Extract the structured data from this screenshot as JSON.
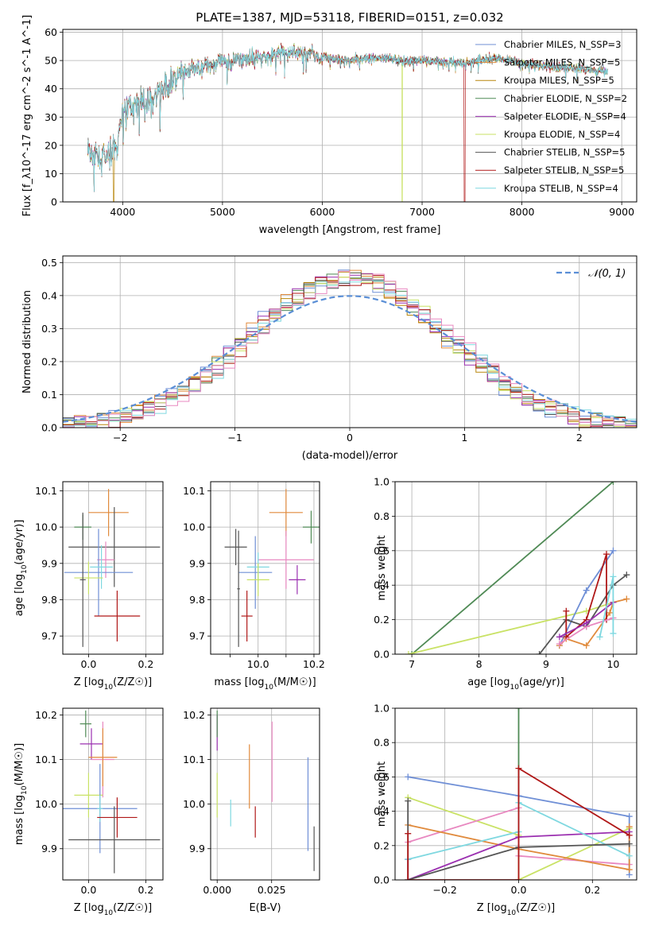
{
  "chart_data": [
    {
      "id": "spectrum",
      "type": "line",
      "title": "PLATE=1387, MJD=53118, FIBERID=0151, z=0.032",
      "xlabel": "wavelength [Angstrom, rest frame]",
      "ylabel": "Flux [f_λ10^-17 erg cm^-2 s^-1 A^-1]",
      "xlim": [
        3400,
        9150
      ],
      "ylim": [
        0,
        61
      ],
      "xticks": [
        4000,
        5000,
        6000,
        7000,
        8000,
        9000
      ],
      "yticks": [
        0,
        10,
        20,
        30,
        40,
        50,
        60
      ],
      "legend_position": "top-right",
      "series": [
        {
          "name": "Chabrier MILES, N_SSP=3",
          "color": "#6f8fd6"
        },
        {
          "name": "Salpeter MILES, N_SSP=5",
          "color": "#e08a3c"
        },
        {
          "name": "Kroupa MILES, N_SSP=5",
          "color": "#b8860b"
        },
        {
          "name": "Chabrier ELODIE, N_SSP=2",
          "color": "#4f8a55"
        },
        {
          "name": "Salpeter ELODIE, N_SSP=4",
          "color": "#9b30b0"
        },
        {
          "name": "Kroupa ELODIE, N_SSP=4",
          "color": "#c9e265"
        },
        {
          "name": "Chabrier STELIB, N_SSP=5",
          "color": "#555555"
        },
        {
          "name": "Salpeter STELIB, N_SSP=5",
          "color": "#b01818"
        },
        {
          "name": "Kroupa STELIB, N_SSP=4",
          "color": "#7fd8e0"
        }
      ],
      "continuum": {
        "x": [
          3650,
          3800,
          3950,
          4000,
          4100,
          4300,
          4500,
          4700,
          4900,
          5100,
          5300,
          5500,
          5700,
          5900,
          6200,
          6500,
          6800,
          7100,
          7400,
          7700,
          8000,
          8300,
          8600,
          8850
        ],
        "y": [
          18,
          15,
          20,
          32,
          35,
          36,
          43,
          47,
          49,
          50,
          51,
          52,
          53,
          52,
          50,
          51,
          50,
          50,
          49,
          51,
          49,
          48,
          47,
          46
        ]
      }
    },
    {
      "id": "residuals",
      "type": "step",
      "xlabel": "(data-model)/error",
      "ylabel": "Normed distribution",
      "xlim": [
        -2.5,
        2.5
      ],
      "ylim": [
        0,
        0.52
      ],
      "xticks": [
        -2,
        -1,
        0,
        1,
        2
      ],
      "yticks": [
        0.0,
        0.1,
        0.2,
        0.3,
        0.4,
        0.5
      ],
      "legend_position": "top-right",
      "reference_label": "𝒩(0, 1)",
      "reference_color": "#5b8fd6"
    },
    {
      "id": "age_vs_Z",
      "type": "errorbar",
      "xlabel": "Z [log10(Z/Z☉)]",
      "ylabel": "age [log10(age/yr)]",
      "xlim": [
        -0.09,
        0.26
      ],
      "ylim": [
        9.65,
        10.125
      ],
      "xticks": [
        0.0,
        0.2
      ],
      "yticks": [
        9.7,
        9.8,
        9.9,
        10.0,
        10.1
      ],
      "points": [
        {
          "x": -0.02,
          "xerr": 0.03,
          "y": 10.0,
          "yerr": 0.035,
          "color": "#4f8a55"
        },
        {
          "x": 0.07,
          "xerr": 0.07,
          "y": 10.04,
          "yerr": 0.065,
          "color": "#e08a3c"
        },
        {
          "x": 0.09,
          "xerr": 0.16,
          "y": 9.945,
          "yerr": 0.11,
          "color": "#555555"
        },
        {
          "x": 0.06,
          "xerr": 0.03,
          "y": 9.91,
          "yerr": 0.05,
          "color": "#e888c0"
        },
        {
          "x": 0.035,
          "xerr": 0.12,
          "y": 9.875,
          "yerr": 0.12,
          "color": "#6f8fd6"
        },
        {
          "x": 0.045,
          "xerr": 0.04,
          "y": 9.89,
          "yerr": 0.06,
          "color": "#7fd8e0"
        },
        {
          "x": 0.0,
          "xerr": 0.05,
          "y": 9.86,
          "yerr": 0.045,
          "color": "#c9e265"
        },
        {
          "x": 0.1,
          "xerr": 0.08,
          "y": 9.755,
          "yerr": 0.07,
          "color": "#b01818"
        },
        {
          "x": -0.02,
          "xerr": 0.01,
          "y": 9.855,
          "yerr": 0.185,
          "color": "#555555"
        }
      ]
    },
    {
      "id": "age_vs_mass",
      "type": "errorbar",
      "xlabel": "mass [log10(M/M☉)]",
      "ylabel": "",
      "xlim": [
        9.83,
        10.22
      ],
      "ylim": [
        9.65,
        10.125
      ],
      "xticks": [
        9.9,
        10.0,
        10.1,
        10.2
      ],
      "tick_labels": [
        "",
        "10.0",
        "",
        "10.2"
      ],
      "yticks": [
        9.7,
        9.8,
        9.9,
        10.0,
        10.1
      ],
      "points": [
        {
          "x": 10.19,
          "xerr": 0.03,
          "y": 10.0,
          "yerr": 0.045,
          "color": "#4f8a55"
        },
        {
          "x": 10.1,
          "xerr": 0.06,
          "y": 10.04,
          "yerr": 0.065,
          "color": "#e08a3c"
        },
        {
          "x": 9.92,
          "xerr": 0.04,
          "y": 9.945,
          "yerr": 0.05,
          "color": "#555555"
        },
        {
          "x": 10.1,
          "xerr": 0.1,
          "y": 9.91,
          "yerr": 0.08,
          "color": "#e888c0"
        },
        {
          "x": 9.99,
          "xerr": 0.06,
          "y": 9.875,
          "yerr": 0.1,
          "color": "#6f8fd6"
        },
        {
          "x": 10.0,
          "xerr": 0.04,
          "y": 9.89,
          "yerr": 0.04,
          "color": "#7fd8e0"
        },
        {
          "x": 10.0,
          "xerr": 0.04,
          "y": 9.855,
          "yerr": 0.045,
          "color": "#c9e265"
        },
        {
          "x": 10.14,
          "xerr": 0.03,
          "y": 9.855,
          "yerr": 0.04,
          "color": "#9b30b0"
        },
        {
          "x": 9.96,
          "xerr": 0.02,
          "y": 9.755,
          "yerr": 0.07,
          "color": "#b01818"
        },
        {
          "x": 9.93,
          "xerr": 0.005,
          "y": 9.83,
          "yerr": 0.16,
          "color": "#555555"
        }
      ]
    },
    {
      "id": "weight_vs_age",
      "type": "line",
      "xlabel": "age [log10(age/yr)]",
      "ylabel": "mass weight",
      "xlim": [
        6.75,
        10.35
      ],
      "ylim": [
        0,
        1.0
      ],
      "xticks": [
        7,
        8,
        9,
        10
      ],
      "yticks": [
        0.0,
        0.2,
        0.4,
        0.6,
        0.8,
        1.0
      ],
      "series": [
        {
          "color": "#4f8a55",
          "x": [
            7.0,
            10.0
          ],
          "y": [
            0.0,
            1.0
          ]
        },
        {
          "color": "#c9e265",
          "x": [
            6.95,
            9.6,
            10.0
          ],
          "y": [
            0.0,
            0.25,
            0.3
          ]
        },
        {
          "color": "#6f8fd6",
          "x": [
            9.2,
            9.6,
            10.0
          ],
          "y": [
            0.05,
            0.37,
            0.6
          ]
        },
        {
          "color": "#e08a3c",
          "x": [
            9.2,
            9.3,
            9.6,
            9.95,
            10.0,
            10.2
          ],
          "y": [
            0.05,
            0.09,
            0.05,
            0.24,
            0.3,
            0.32
          ]
        },
        {
          "color": "#555555",
          "x": [
            8.9,
            9.3,
            9.6,
            10.0,
            10.2
          ],
          "y": [
            0.0,
            0.2,
            0.16,
            0.4,
            0.46
          ]
        },
        {
          "color": "#b01818",
          "x": [
            9.3,
            9.3,
            9.6,
            9.9,
            9.9
          ],
          "y": [
            0.25,
            0.1,
            0.2,
            0.58,
            0.2
          ]
        },
        {
          "color": "#e888c0",
          "x": [
            9.2,
            9.6,
            10.0
          ],
          "y": [
            0.06,
            0.16,
            0.21
          ]
        },
        {
          "color": "#9b30b0",
          "x": [
            9.2,
            9.6,
            10.0
          ],
          "y": [
            0.1,
            0.18,
            0.3
          ]
        },
        {
          "color": "#7fd8e0",
          "x": [
            9.8,
            10.0,
            10.0
          ],
          "y": [
            0.1,
            0.45,
            0.12
          ]
        }
      ]
    },
    {
      "id": "mass_vs_Z",
      "type": "errorbar",
      "xlabel": "Z [log10(Z/Z☉)]",
      "ylabel": "mass [log10(M/M☉)]",
      "xlim": [
        -0.09,
        0.26
      ],
      "ylim": [
        9.83,
        10.215
      ],
      "xticks": [
        0.0,
        0.2
      ],
      "yticks": [
        9.9,
        10.0,
        10.1,
        10.2
      ],
      "points": [
        {
          "x": -0.01,
          "xerr": 0.02,
          "y": 10.18,
          "yerr": 0.03,
          "color": "#4f8a55"
        },
        {
          "x": 0.01,
          "xerr": 0.04,
          "y": 10.135,
          "yerr": 0.035,
          "color": "#9b30b0"
        },
        {
          "x": 0.05,
          "xerr": 0.04,
          "y": 10.1,
          "yerr": 0.085,
          "color": "#e888c0"
        },
        {
          "x": 0.05,
          "xerr": 0.05,
          "y": 10.105,
          "yerr": 0.065,
          "color": "#e08a3c"
        },
        {
          "x": 0.0,
          "xerr": 0.05,
          "y": 10.02,
          "yerr": 0.05,
          "color": "#c9e265"
        },
        {
          "x": 0.04,
          "xerr": 0.13,
          "y": 9.99,
          "yerr": 0.1,
          "color": "#6f8fd6"
        },
        {
          "x": 0.04,
          "xerr": 0.01,
          "y": 9.99,
          "yerr": 0.03,
          "color": "#7fd8e0"
        },
        {
          "x": 0.1,
          "xerr": 0.07,
          "y": 9.97,
          "yerr": 0.045,
          "color": "#b01818"
        },
        {
          "x": 0.09,
          "xerr": 0.16,
          "y": 9.92,
          "yerr": 0.075,
          "color": "#555555"
        }
      ]
    },
    {
      "id": "mass_vs_ebv",
      "type": "errorbar",
      "xlabel": "E(B-V)",
      "ylabel": "",
      "xlim": [
        -0.003,
        0.047
      ],
      "ylim": [
        9.83,
        10.215
      ],
      "xticks": [
        0.0,
        0.025
      ],
      "tick_labels": [
        "0.000",
        "0.025"
      ],
      "yticks": [
        9.9,
        10.0,
        10.1,
        10.2
      ],
      "points": [
        {
          "x": 0.0,
          "y": 10.16,
          "yerr": 0.04,
          "color": "#9b30b0"
        },
        {
          "x": 0.0,
          "y": 10.02,
          "yerr": 0.05,
          "color": "#c9e265"
        },
        {
          "x": 0.0,
          "y": 10.18,
          "yerr": 0.03,
          "color": "#4f8a55"
        },
        {
          "x": 0.0062,
          "y": 9.98,
          "yerr": 0.03,
          "color": "#7fd8e0"
        },
        {
          "x": 0.0148,
          "y": 10.062,
          "yerr": 0.072,
          "color": "#e08a3c"
        },
        {
          "x": 0.0175,
          "y": 9.96,
          "yerr": 0.035,
          "color": "#b01818"
        },
        {
          "x": 0.0252,
          "y": 10.095,
          "yerr": 0.09,
          "color": "#e888c0"
        },
        {
          "x": 0.0417,
          "y": 10.0,
          "yerr": 0.105,
          "color": "#6f8fd6"
        },
        {
          "x": 0.0445,
          "y": 9.9,
          "yerr": 0.05,
          "color": "#555555"
        }
      ]
    },
    {
      "id": "weight_vs_Z",
      "type": "line",
      "xlabel": "Z [log10(Z/Z☉)]",
      "ylabel": "mass weight",
      "xlim": [
        -0.335,
        0.32
      ],
      "ylim": [
        0,
        1.0
      ],
      "xticks": [
        -0.2,
        0.0,
        0.2
      ],
      "tick_labels": [
        "−0.2",
        "0.0",
        "0.2"
      ],
      "yticks": [
        0.0,
        0.2,
        0.4,
        0.6,
        0.8,
        1.0
      ],
      "series": [
        {
          "color": "#4f8a55",
          "x": [
            0.0,
            0.0
          ],
          "y": [
            0.0,
            1.0
          ]
        },
        {
          "color": "#6f8fd6",
          "x": [
            -0.3,
            0.0,
            0.3,
            0.3
          ],
          "y": [
            0.6,
            0.49,
            0.37,
            0.03
          ]
        },
        {
          "color": "#c9e265",
          "x": [
            -0.3,
            0.0,
            0.0,
            0.3
          ],
          "y": [
            0.48,
            0.26,
            0.0,
            0.3
          ]
        },
        {
          "color": "#e888c0",
          "x": [
            -0.3,
            0.0,
            0.0,
            0.3
          ],
          "y": [
            0.22,
            0.42,
            0.14,
            0.09
          ]
        },
        {
          "color": "#e08a3c",
          "x": [
            -0.3,
            0.0,
            0.3,
            0.3
          ],
          "y": [
            0.32,
            0.18,
            0.06,
            0.31
          ]
        },
        {
          "color": "#9b30b0",
          "x": [
            -0.3,
            -0.3,
            0.0,
            0.3
          ],
          "y": [
            0.12,
            0.0,
            0.25,
            0.28
          ]
        },
        {
          "color": "#7fd8e0",
          "x": [
            -0.3,
            0.0,
            0.0,
            0.3
          ],
          "y": [
            0.12,
            0.28,
            0.45,
            0.14
          ]
        },
        {
          "color": "#555555",
          "x": [
            -0.3,
            -0.3,
            0.0,
            0.3
          ],
          "y": [
            0.46,
            0.0,
            0.19,
            0.21
          ]
        },
        {
          "color": "#b01818",
          "x": [
            -0.3,
            -0.3,
            0.0,
            0.0,
            0.3
          ],
          "y": [
            0.27,
            0.0,
            0.0,
            0.65,
            0.26
          ]
        }
      ]
    }
  ]
}
